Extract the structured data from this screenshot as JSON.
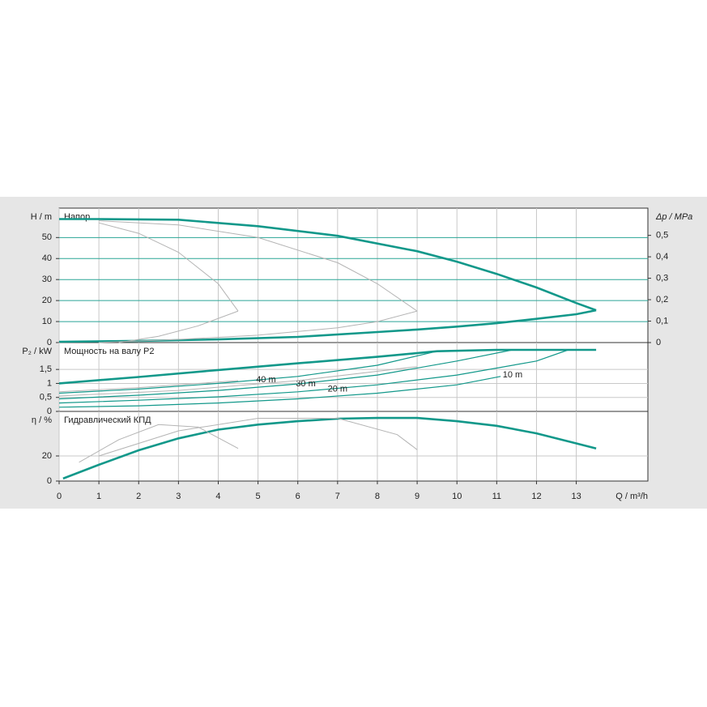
{
  "chart_data": [
    {
      "type": "line",
      "title": "Напор",
      "ylabel": "H / m",
      "y2label": "Δp / MPa",
      "ylim": [
        0,
        64
      ],
      "yticks": [
        0,
        10,
        20,
        30,
        40,
        50
      ],
      "y2lim": [
        0,
        0.627
      ],
      "y2ticks": [
        0,
        {
          "value": 0.1,
          "label": "0,1"
        },
        {
          "value": 0.2,
          "label": "0,2"
        },
        {
          "value": 0.3,
          "label": "0,3"
        },
        {
          "value": 0.4,
          "label": "0,4"
        },
        {
          "value": 0.5,
          "label": "0,5"
        }
      ],
      "series": [
        {
          "color": "#12988a",
          "x": [
            0,
            1,
            3,
            5,
            7,
            9,
            10,
            11,
            12,
            13,
            13.5
          ],
          "values": [
            58.8,
            58.8,
            58.5,
            55.4,
            50.8,
            43.5,
            38.5,
            32.7,
            26.2,
            18.8,
            15.4
          ]
        },
        {
          "color": "#12988a",
          "x": [
            0,
            2,
            4,
            6,
            8,
            9,
            10,
            11,
            12,
            13,
            13.5
          ],
          "values": [
            0.4,
            0.8,
            1.5,
            2.7,
            5,
            6.2,
            7.6,
            9.2,
            11.3,
            13.5,
            15.4
          ]
        },
        {
          "color": "#b4b4b4",
          "x": [
            1,
            3,
            5,
            7,
            8,
            9
          ],
          "values": [
            58,
            56,
            50,
            38,
            28,
            15
          ]
        },
        {
          "color": "#b4b4b4",
          "x": [
            1,
            3,
            5,
            7,
            8,
            9
          ],
          "values": [
            0,
            1.5,
            3.5,
            7,
            10,
            15
          ]
        },
        {
          "color": "#b4b4b4",
          "x": [
            1,
            2,
            3,
            4,
            4.5
          ],
          "values": [
            57,
            52,
            43,
            28,
            15
          ]
        },
        {
          "color": "#b4b4b4",
          "x": [
            1.5,
            2.5,
            3.5,
            4.5
          ],
          "values": [
            0,
            3,
            8,
            15
          ]
        }
      ]
    },
    {
      "type": "line",
      "title": "Мощность на валу P2",
      "ylabel": "P₂ / kW",
      "ylim": [
        0,
        2.46
      ],
      "yticks": [
        0,
        {
          "value": 0.5,
          "label": "0,5"
        },
        1,
        {
          "value": 1.5,
          "label": "1,5"
        }
      ],
      "series": [
        {
          "color": "#12988a",
          "x": [
            0,
            2,
            4,
            6,
            8,
            9.5,
            11,
            13.5
          ],
          "values": [
            1.0,
            1.23,
            1.48,
            1.72,
            1.95,
            2.15,
            2.2,
            2.2
          ]
        },
        {
          "name": "40 m",
          "color": "#12988a",
          "x": [
            0,
            2,
            4,
            6,
            8,
            9.5
          ],
          "values": [
            0.65,
            0.8,
            1.0,
            1.25,
            1.65,
            2.15
          ]
        },
        {
          "name": "30 m",
          "color": "#12988a",
          "x": [
            0,
            2,
            4,
            6,
            8,
            10,
            11.4
          ],
          "values": [
            0.45,
            0.58,
            0.75,
            0.98,
            1.3,
            1.8,
            2.2
          ]
        },
        {
          "name": "20 m",
          "color": "#12988a",
          "x": [
            0,
            2,
            4,
            6,
            8,
            10,
            12,
            12.8
          ],
          "values": [
            0.3,
            0.4,
            0.52,
            0.7,
            0.95,
            1.3,
            1.8,
            2.2
          ]
        },
        {
          "name": "10 m",
          "color": "#12988a",
          "x": [
            0,
            2,
            4,
            6,
            8,
            10,
            11.1
          ],
          "values": [
            0.15,
            0.2,
            0.3,
            0.45,
            0.65,
            0.95,
            1.25
          ]
        },
        {
          "color": "#b4b4b4",
          "x": [
            0,
            2,
            4.5
          ],
          "values": [
            0.7,
            0.85,
            1.1
          ]
        },
        {
          "color": "#b4b4b4",
          "x": [
            0,
            3,
            6,
            9
          ],
          "values": [
            0.55,
            0.75,
            1.1,
            1.6
          ]
        }
      ]
    },
    {
      "type": "line",
      "title": "Гидравлический КПД",
      "ylabel": "η / %",
      "xlabel": "Q / m³/h",
      "ylim": [
        0,
        55.5
      ],
      "yticks": [
        0,
        20
      ],
      "xlim": [
        0,
        14.8
      ],
      "xticks": [
        0,
        1,
        2,
        3,
        4,
        5,
        6,
        7,
        8,
        9,
        10,
        11,
        12,
        13
      ],
      "series": [
        {
          "color": "#12988a",
          "x": [
            0.1,
            1,
            2,
            3,
            4,
            5,
            6,
            7,
            8,
            9,
            10,
            11,
            12,
            13,
            13.5
          ],
          "values": [
            2,
            13,
            24.5,
            34,
            41,
            45,
            47.7,
            49.7,
            50.3,
            50.3,
            47.7,
            44,
            38,
            30,
            26
          ]
        },
        {
          "color": "#b4b4b4",
          "x": [
            0.5,
            1.5,
            2.5,
            3.5,
            4.5
          ],
          "values": [
            15,
            33,
            45,
            43,
            26
          ]
        },
        {
          "color": "#b4b4b4",
          "x": [
            1,
            3,
            5,
            7,
            8.5,
            9
          ],
          "values": [
            20,
            40,
            50,
            50,
            37,
            25
          ]
        }
      ]
    }
  ]
}
